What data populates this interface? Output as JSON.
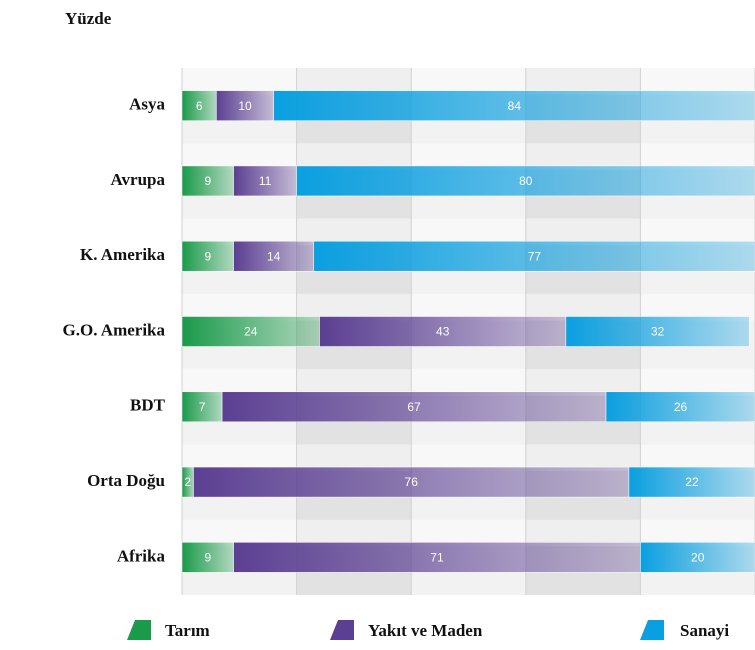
{
  "chart_data": {
    "type": "stacked-bar-horizontal",
    "title": "Yüzde",
    "categories": [
      "Asya",
      "Avrupa",
      "K. Amerika",
      "G.O. Amerika",
      "BDT",
      "Orta Doğu",
      "Afrika"
    ],
    "series": [
      {
        "name": "Tarım",
        "color": "#1a9a4a",
        "values": [
          6,
          9,
          9,
          24,
          7,
          2,
          9
        ]
      },
      {
        "name": "Yakıt ve Maden",
        "color": "#5b3f92",
        "values": [
          10,
          11,
          14,
          43,
          67,
          76,
          71
        ]
      },
      {
        "name": "Sanayi",
        "color": "#0a9fe0",
        "values": [
          84,
          80,
          77,
          32,
          26,
          22,
          20
        ]
      }
    ],
    "xlim": [
      0,
      100
    ],
    "xticks": [
      0,
      20,
      40,
      60,
      80,
      100
    ],
    "grid": true
  }
}
